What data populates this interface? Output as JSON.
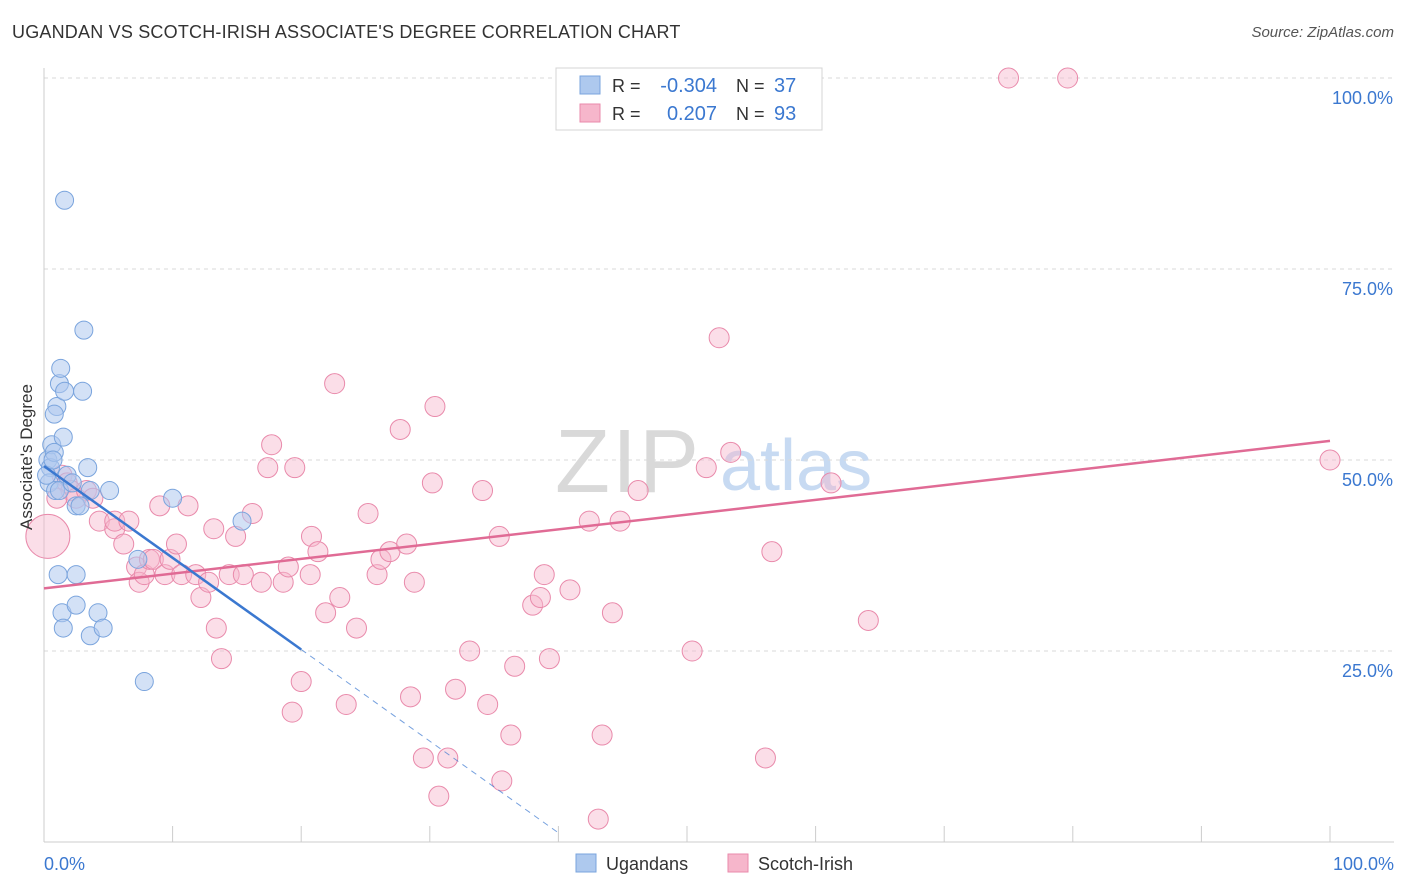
{
  "chart_data": {
    "type": "scatter",
    "title": "UGANDAN VS SCOTCH-IRISH ASSOCIATE'S DEGREE CORRELATION CHART",
    "source": "Source: ZipAtlas.com",
    "watermark": {
      "zip": "ZIP",
      "atlas": "atlas"
    },
    "ylabel": "Associate's Degree",
    "xlim": [
      0,
      100
    ],
    "ylim": [
      0,
      102
    ],
    "x_tick_labels": {
      "left": "0.0%",
      "right": "100.0%"
    },
    "y_ticks": [
      {
        "value": 100,
        "label": "100.0%"
      },
      {
        "value": 75,
        "label": "75.0%"
      },
      {
        "value": 50,
        "label": "50.0%"
      },
      {
        "value": 25,
        "label": "25.0%"
      }
    ],
    "legend_stats": [
      {
        "series": "Ugandans",
        "r_label": "R =",
        "r_value": "-0.304",
        "n_label": "N =",
        "n_value": "37"
      },
      {
        "series": "Scotch-Irish",
        "r_label": "R =",
        "r_value": "0.207",
        "n_label": "N =",
        "n_value": "93"
      }
    ],
    "colors": {
      "ugandans_fill": "#aec9ee",
      "ugandans_stroke": "#7aa4dd",
      "ugandans_line": "#3b78d0",
      "scotch_fill": "#f6b6cb",
      "scotch_stroke": "#e98aab",
      "scotch_line": "#e06b95",
      "stat_value": "#3b78d0",
      "grid": "#d9d9d9",
      "tick_label": "#3b78d0"
    },
    "series": [
      {
        "name": "Ugandans",
        "trend": {
          "x0": 0,
          "y0": 49.2,
          "x1": 20,
          "y1": 25.2,
          "dash_to_x": 40
        },
        "points": [
          [
            0.3,
            50
          ],
          [
            0.5,
            49
          ],
          [
            0.6,
            52
          ],
          [
            0.8,
            51
          ],
          [
            0.4,
            47
          ],
          [
            0.9,
            46
          ],
          [
            1.0,
            57
          ],
          [
            0.8,
            56
          ],
          [
            1.2,
            60
          ],
          [
            1.3,
            62
          ],
          [
            1.6,
            59
          ],
          [
            1.5,
            53
          ],
          [
            1.2,
            46
          ],
          [
            1.8,
            48
          ],
          [
            2.2,
            47
          ],
          [
            2.5,
            44
          ],
          [
            2.8,
            44
          ],
          [
            3.4,
            49
          ],
          [
            3.6,
            46
          ],
          [
            3.0,
            59
          ],
          [
            3.1,
            67
          ],
          [
            1.6,
            84
          ],
          [
            1.1,
            35
          ],
          [
            2.5,
            35
          ],
          [
            1.4,
            30
          ],
          [
            1.5,
            28
          ],
          [
            2.5,
            31
          ],
          [
            3.6,
            27
          ],
          [
            4.2,
            30
          ],
          [
            4.6,
            28
          ],
          [
            5.1,
            46
          ],
          [
            7.3,
            37
          ],
          [
            7.8,
            21
          ],
          [
            10.0,
            45
          ],
          [
            15.4,
            42
          ],
          [
            0.2,
            48
          ],
          [
            0.7,
            50
          ]
        ]
      },
      {
        "name": "Scotch-Irish",
        "trend": {
          "x0": 0,
          "y0": 33.2,
          "x1": 100,
          "y1": 52.5
        },
        "points": [
          [
            0.3,
            40
          ],
          [
            1.4,
            48
          ],
          [
            1.8,
            47
          ],
          [
            2.1,
            46
          ],
          [
            2.5,
            45
          ],
          [
            3.3,
            46
          ],
          [
            3.8,
            45
          ],
          [
            4.3,
            42
          ],
          [
            5.5,
            41
          ],
          [
            5.5,
            42
          ],
          [
            6.2,
            39
          ],
          [
            6.6,
            42
          ],
          [
            7.2,
            36
          ],
          [
            7.4,
            34
          ],
          [
            7.8,
            35
          ],
          [
            8.2,
            37
          ],
          [
            8.5,
            37
          ],
          [
            9.0,
            44
          ],
          [
            9.4,
            35
          ],
          [
            9.8,
            37
          ],
          [
            10.3,
            39
          ],
          [
            10.7,
            35
          ],
          [
            11.2,
            44
          ],
          [
            11.8,
            35
          ],
          [
            12.2,
            32
          ],
          [
            12.8,
            34
          ],
          [
            13.2,
            41
          ],
          [
            13.4,
            28
          ],
          [
            13.8,
            24
          ],
          [
            14.4,
            35
          ],
          [
            14.9,
            40
          ],
          [
            15.5,
            35
          ],
          [
            16.2,
            43
          ],
          [
            16.9,
            34
          ],
          [
            17.4,
            49
          ],
          [
            17.7,
            52
          ],
          [
            18.6,
            34
          ],
          [
            19.0,
            36
          ],
          [
            19.3,
            17
          ],
          [
            19.5,
            49
          ],
          [
            20.0,
            21
          ],
          [
            20.7,
            35
          ],
          [
            20.8,
            40
          ],
          [
            21.3,
            38
          ],
          [
            21.9,
            30
          ],
          [
            22.6,
            60
          ],
          [
            23.0,
            32
          ],
          [
            23.5,
            18
          ],
          [
            24.3,
            28
          ],
          [
            25.2,
            43
          ],
          [
            25.9,
            35
          ],
          [
            26.2,
            37
          ],
          [
            26.9,
            38
          ],
          [
            27.7,
            54
          ],
          [
            28.2,
            39
          ],
          [
            28.5,
            19
          ],
          [
            28.8,
            34
          ],
          [
            29.5,
            11
          ],
          [
            30.2,
            47
          ],
          [
            30.4,
            57
          ],
          [
            30.7,
            6
          ],
          [
            31.4,
            11
          ],
          [
            32.0,
            20
          ],
          [
            33.1,
            25
          ],
          [
            34.1,
            46
          ],
          [
            34.5,
            18
          ],
          [
            35.4,
            40
          ],
          [
            35.6,
            8
          ],
          [
            36.3,
            14
          ],
          [
            36.6,
            23
          ],
          [
            38.0,
            31
          ],
          [
            38.6,
            32
          ],
          [
            38.9,
            35
          ],
          [
            39.3,
            24
          ],
          [
            40.9,
            33
          ],
          [
            42.4,
            42
          ],
          [
            43.1,
            3
          ],
          [
            43.4,
            14
          ],
          [
            44.2,
            30
          ],
          [
            44.8,
            42
          ],
          [
            46.2,
            46
          ],
          [
            50.4,
            25
          ],
          [
            51.5,
            49
          ],
          [
            52.5,
            66
          ],
          [
            53.4,
            51
          ],
          [
            56.1,
            11
          ],
          [
            56.6,
            38
          ],
          [
            61.2,
            47
          ],
          [
            64.1,
            29
          ],
          [
            75.0,
            100
          ],
          [
            79.6,
            100
          ],
          [
            100,
            50
          ],
          [
            1.0,
            45
          ]
        ]
      }
    ],
    "legend_bottom": [
      "Ugandans",
      "Scotch-Irish"
    ]
  }
}
